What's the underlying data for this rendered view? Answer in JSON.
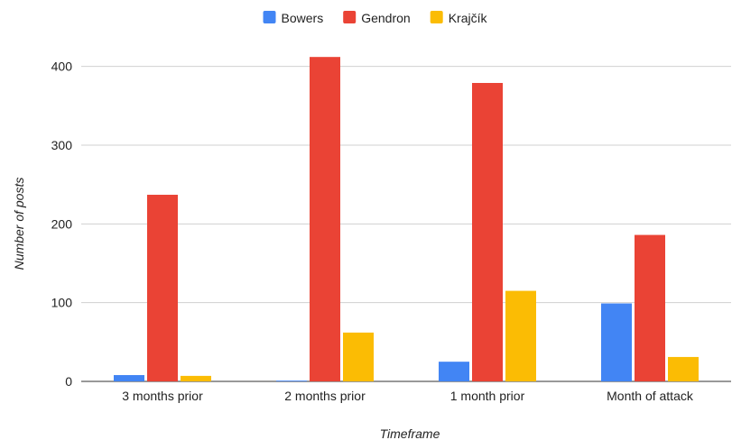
{
  "chart_data": {
    "type": "bar",
    "categories": [
      "3 months prior",
      "2 months prior",
      "1 month prior",
      "Month of attack"
    ],
    "series": [
      {
        "name": "Bowers",
        "values": [
          8,
          1,
          25,
          99
        ],
        "color": "#4285F4"
      },
      {
        "name": "Gendron",
        "values": [
          237,
          412,
          379,
          186
        ],
        "color": "#EA4335"
      },
      {
        "name": "Krajčík",
        "values": [
          7,
          62,
          115,
          31
        ],
        "color": "#FBBC04"
      }
    ],
    "xlabel": "Timeframe",
    "ylabel": "Number of posts",
    "ylim": [
      0,
      450
    ],
    "yticks": [
      0,
      100,
      200,
      300,
      400
    ],
    "grid": true,
    "legend": "top-center"
  }
}
